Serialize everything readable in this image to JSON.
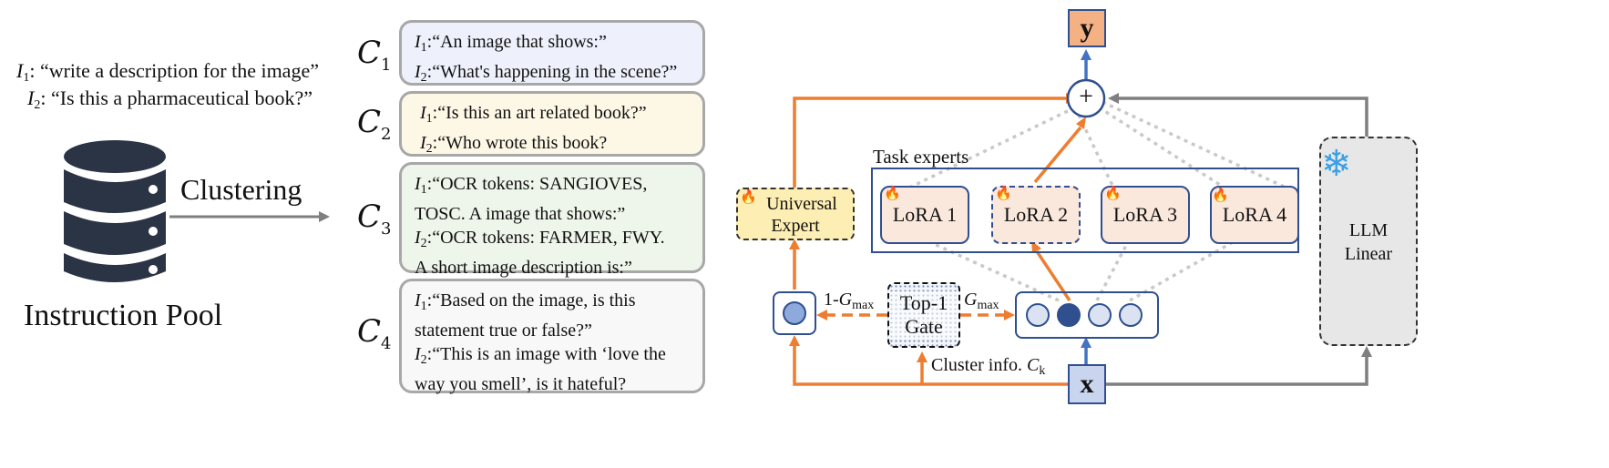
{
  "instructions": {
    "i1": "I",
    "i1_sub": "1",
    "i1_text": ": “write a description for the image”",
    "i2": "I",
    "i2_sub": "2",
    "i2_text": ": “Is this a pharmaceutical book?”"
  },
  "pool": {
    "label": "Instruction Pool",
    "clustering": "Clustering"
  },
  "clusters": [
    {
      "c": "C",
      "sub": "1",
      "l1_i": "I",
      "l1_sub": "1",
      "l1": ":“An image that shows:”",
      "l2_i": "I",
      "l2_sub": "2",
      "l2": ":“What's happening in the scene?”",
      "bg": "#eef0fb"
    },
    {
      "c": "C",
      "sub": "2",
      "l1_i": "I",
      "l1_sub": "1",
      "l1": ":“Is this an art related book?”",
      "l2_i": "I",
      "l2_sub": "2",
      "l2": ":“Who wrote this book?",
      "bg": "#fdf7e6"
    },
    {
      "c": "C",
      "sub": "3",
      "l1_i": "I",
      "l1_sub": "1",
      "l1": ":“OCR tokens: SANGIOVES,",
      "l1b": "TOSC. A image that shows:”",
      "l2_i": "I",
      "l2_sub": "2",
      "l2": ":“OCR tokens: FARMER, FWY.",
      "l2b": "A short image description is:”",
      "bg": "#eef5ea"
    },
    {
      "c": "C",
      "sub": "4",
      "l1_i": "I",
      "l1_sub": "1",
      "l1": ":“Based on the image, is this",
      "l1b": "statement true or false?”",
      "l2_i": "I",
      "l2_sub": "2",
      "l2": ":“This is an image with ‘love the",
      "l2b": "way you smell’, is it hateful?",
      "bg": "#f8f8f8"
    }
  ],
  "architecture": {
    "output": "y",
    "input": "x",
    "plus": "+",
    "task_experts": "Task experts",
    "universal_expert_l1": "Universal",
    "universal_expert_l2": "Expert",
    "lora": [
      "LoRA 1",
      "LoRA 2",
      "LoRA 3",
      "LoRA 4"
    ],
    "gate_l1": "Top-1",
    "gate_l2": "Gate",
    "one_minus_g": "1-",
    "g": "G",
    "g_sub": "max",
    "cluster_info": "Cluster info. ",
    "ck": "C",
    "ck_sub": "k",
    "llm_l1": "LLM",
    "llm_l2": "Linear",
    "snowflake": "❄",
    "fire": "🔥"
  },
  "colors": {
    "orange": "#ed7d31",
    "blue": "#4472c4",
    "navy": "#2f4f8f",
    "gray": "#7f7f7f",
    "lightgray": "#c9c9c9",
    "output_bg": "#f4b183",
    "input_bg": "#c9d5ee",
    "universal_bg": "#fdeeb3",
    "llm_bg": "#e7e7e7"
  }
}
